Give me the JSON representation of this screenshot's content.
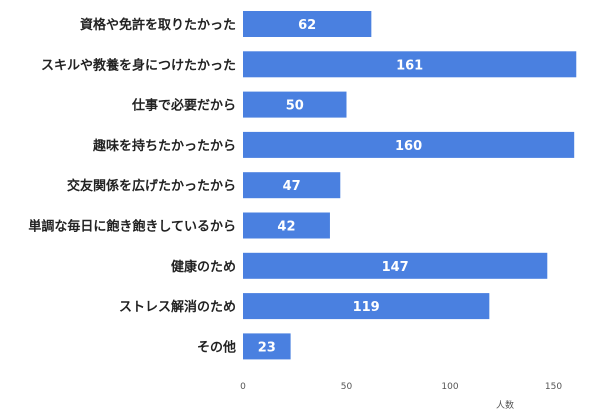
{
  "chart_data": {
    "type": "bar",
    "orientation": "horizontal",
    "title": "",
    "xlabel": "人数",
    "ylabel": "",
    "categories": [
      "資格や免許を取りたかった",
      "スキルや教養を身につけたかった",
      "仕事で必要だから",
      "趣味を持ちたかったから",
      "交友関係を広げたかったから",
      "単調な毎日に飽き飽きしているから",
      "健康のため",
      "ストレス解消のため",
      "その他"
    ],
    "values": [
      62,
      161,
      50,
      160,
      47,
      42,
      147,
      119,
      23
    ],
    "xlim": [
      0,
      161
    ],
    "xticks": [
      "0",
      "50",
      "100",
      "150"
    ],
    "grid": false,
    "legend": "none",
    "bar_color": "#4a80e0",
    "value_label_color": "#ffffff"
  }
}
